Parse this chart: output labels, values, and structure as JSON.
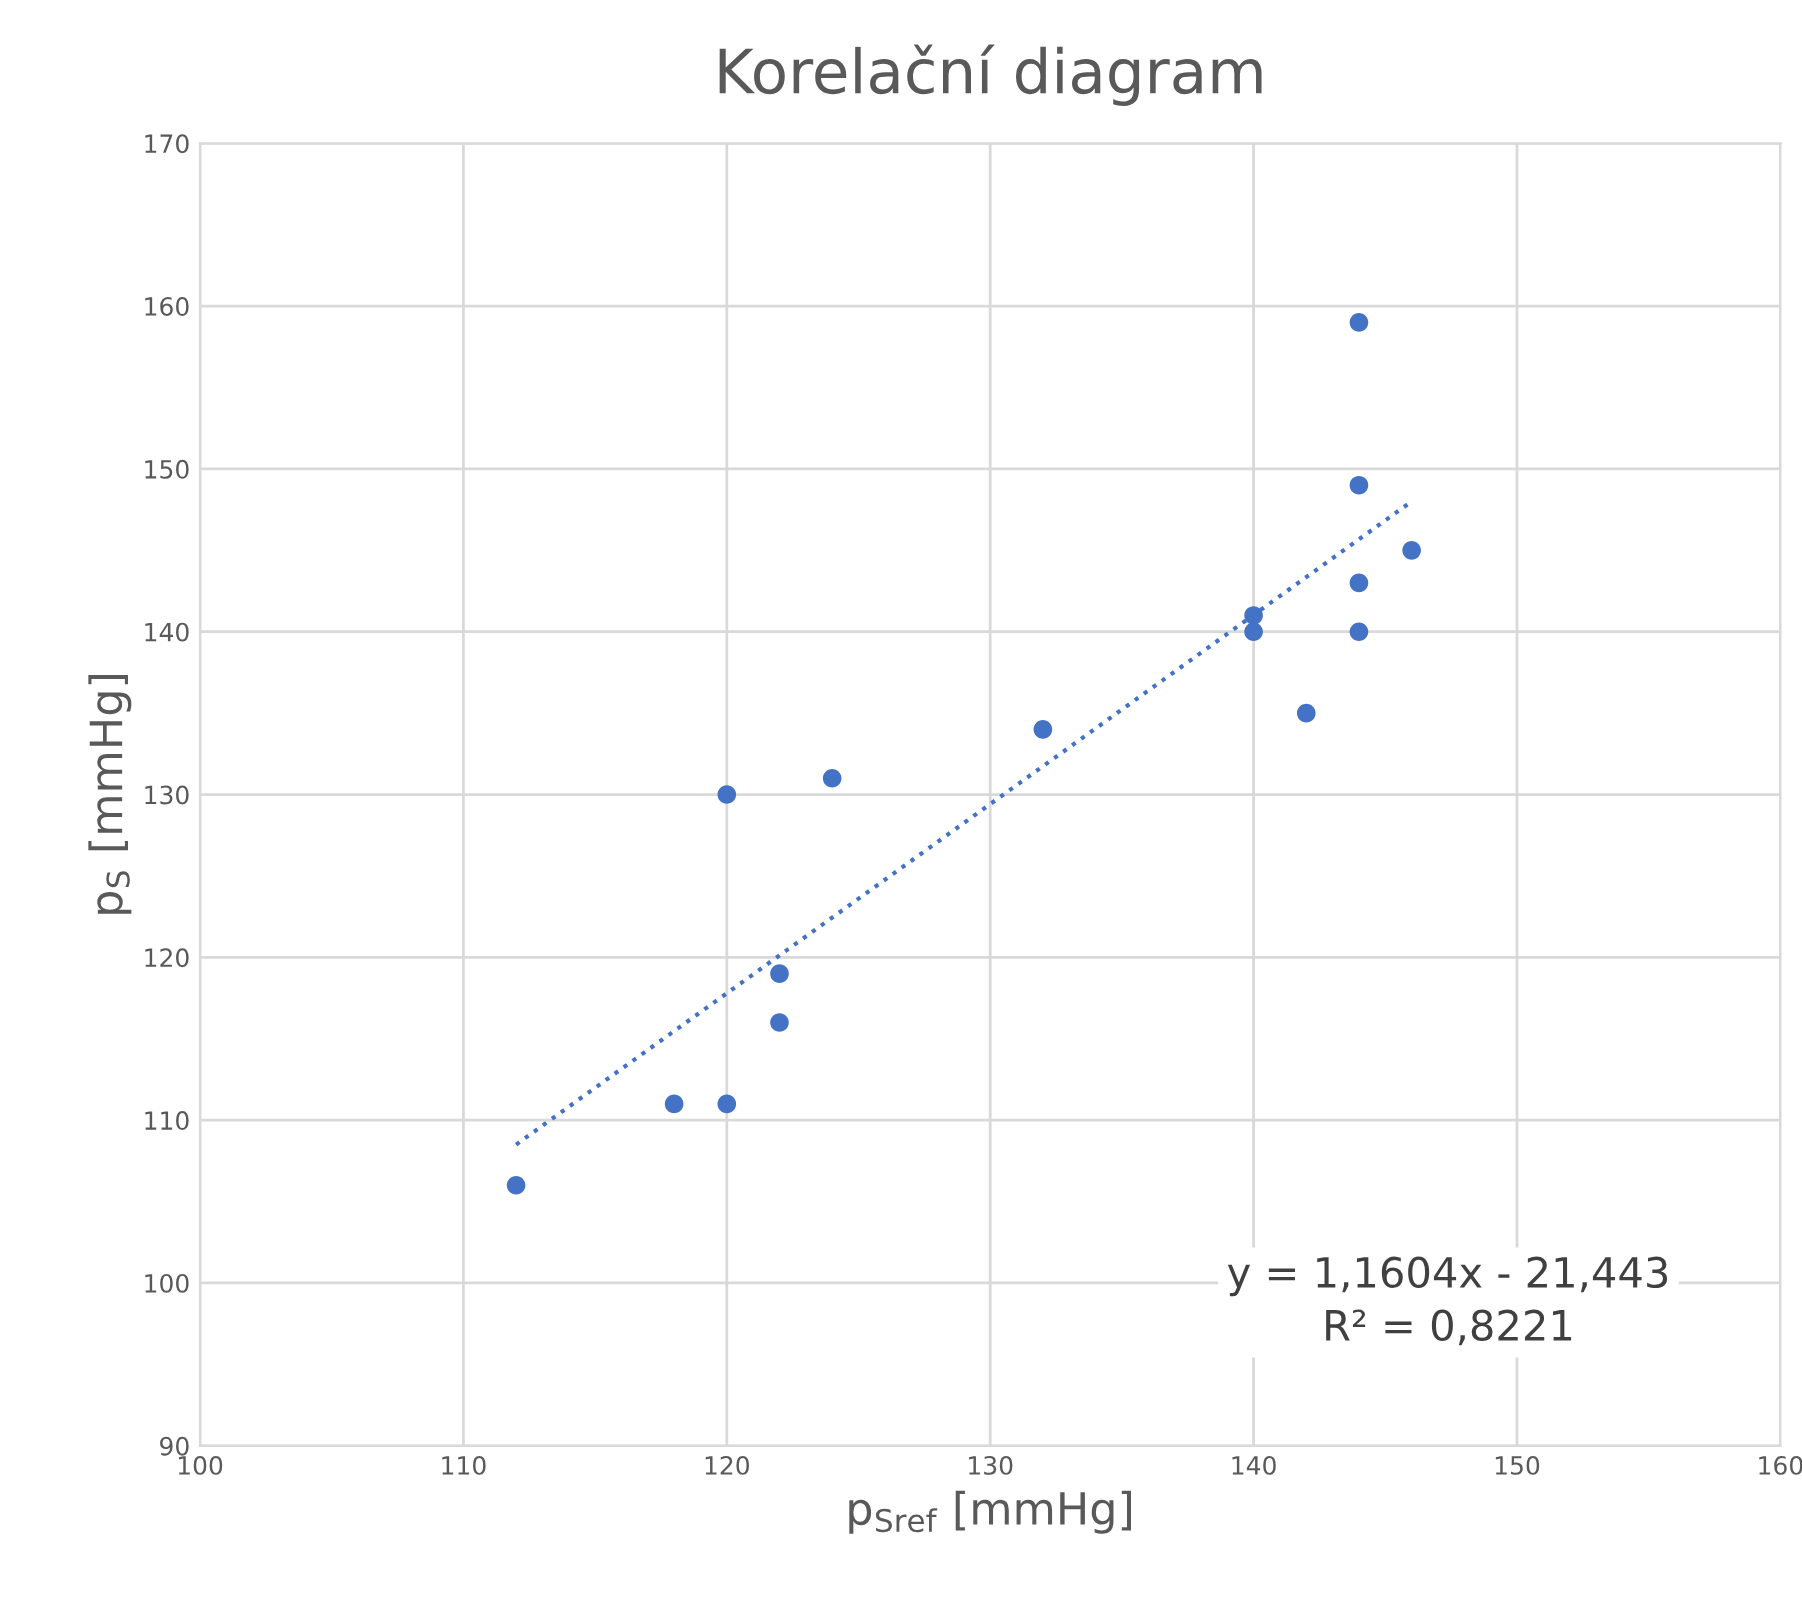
{
  "chart_data": {
    "type": "scatter",
    "title": "Korelační diagram",
    "xlabel": "p$_{Sref}$ [mmHg]",
    "ylabel": "p$_{S}$ [mmHg]",
    "series": [
      {
        "color": "#4472c4",
        "marker": "circle",
        "x": [
          112,
          118,
          120,
          120,
          122,
          122,
          124,
          132,
          140,
          140,
          142,
          144,
          144,
          144,
          144,
          146
        ],
        "values": [
          106,
          111,
          111,
          130,
          119,
          116,
          131,
          134,
          141,
          140,
          135,
          159,
          149,
          143,
          140,
          145
        ]
      },
      {
        "type": "line",
        "color": "#4472c4",
        "line_style": "dotted",
        "marker": "none",
        "x": [
          112,
          146
        ],
        "values": [
          108.5,
          148.0
        ]
      }
    ],
    "annotations": [
      "y = 1,1604x - 21,443",
      "R² = 0,8221"
    ],
    "xlim": [
      100,
      160
    ],
    "xticks": [
      100,
      110,
      120,
      130,
      140,
      150,
      160
    ],
    "ylim": [
      90,
      170
    ],
    "yticks": [
      90,
      100,
      110,
      120,
      130,
      140,
      150,
      160,
      170
    ],
    "grid": true,
    "legend": false
  }
}
